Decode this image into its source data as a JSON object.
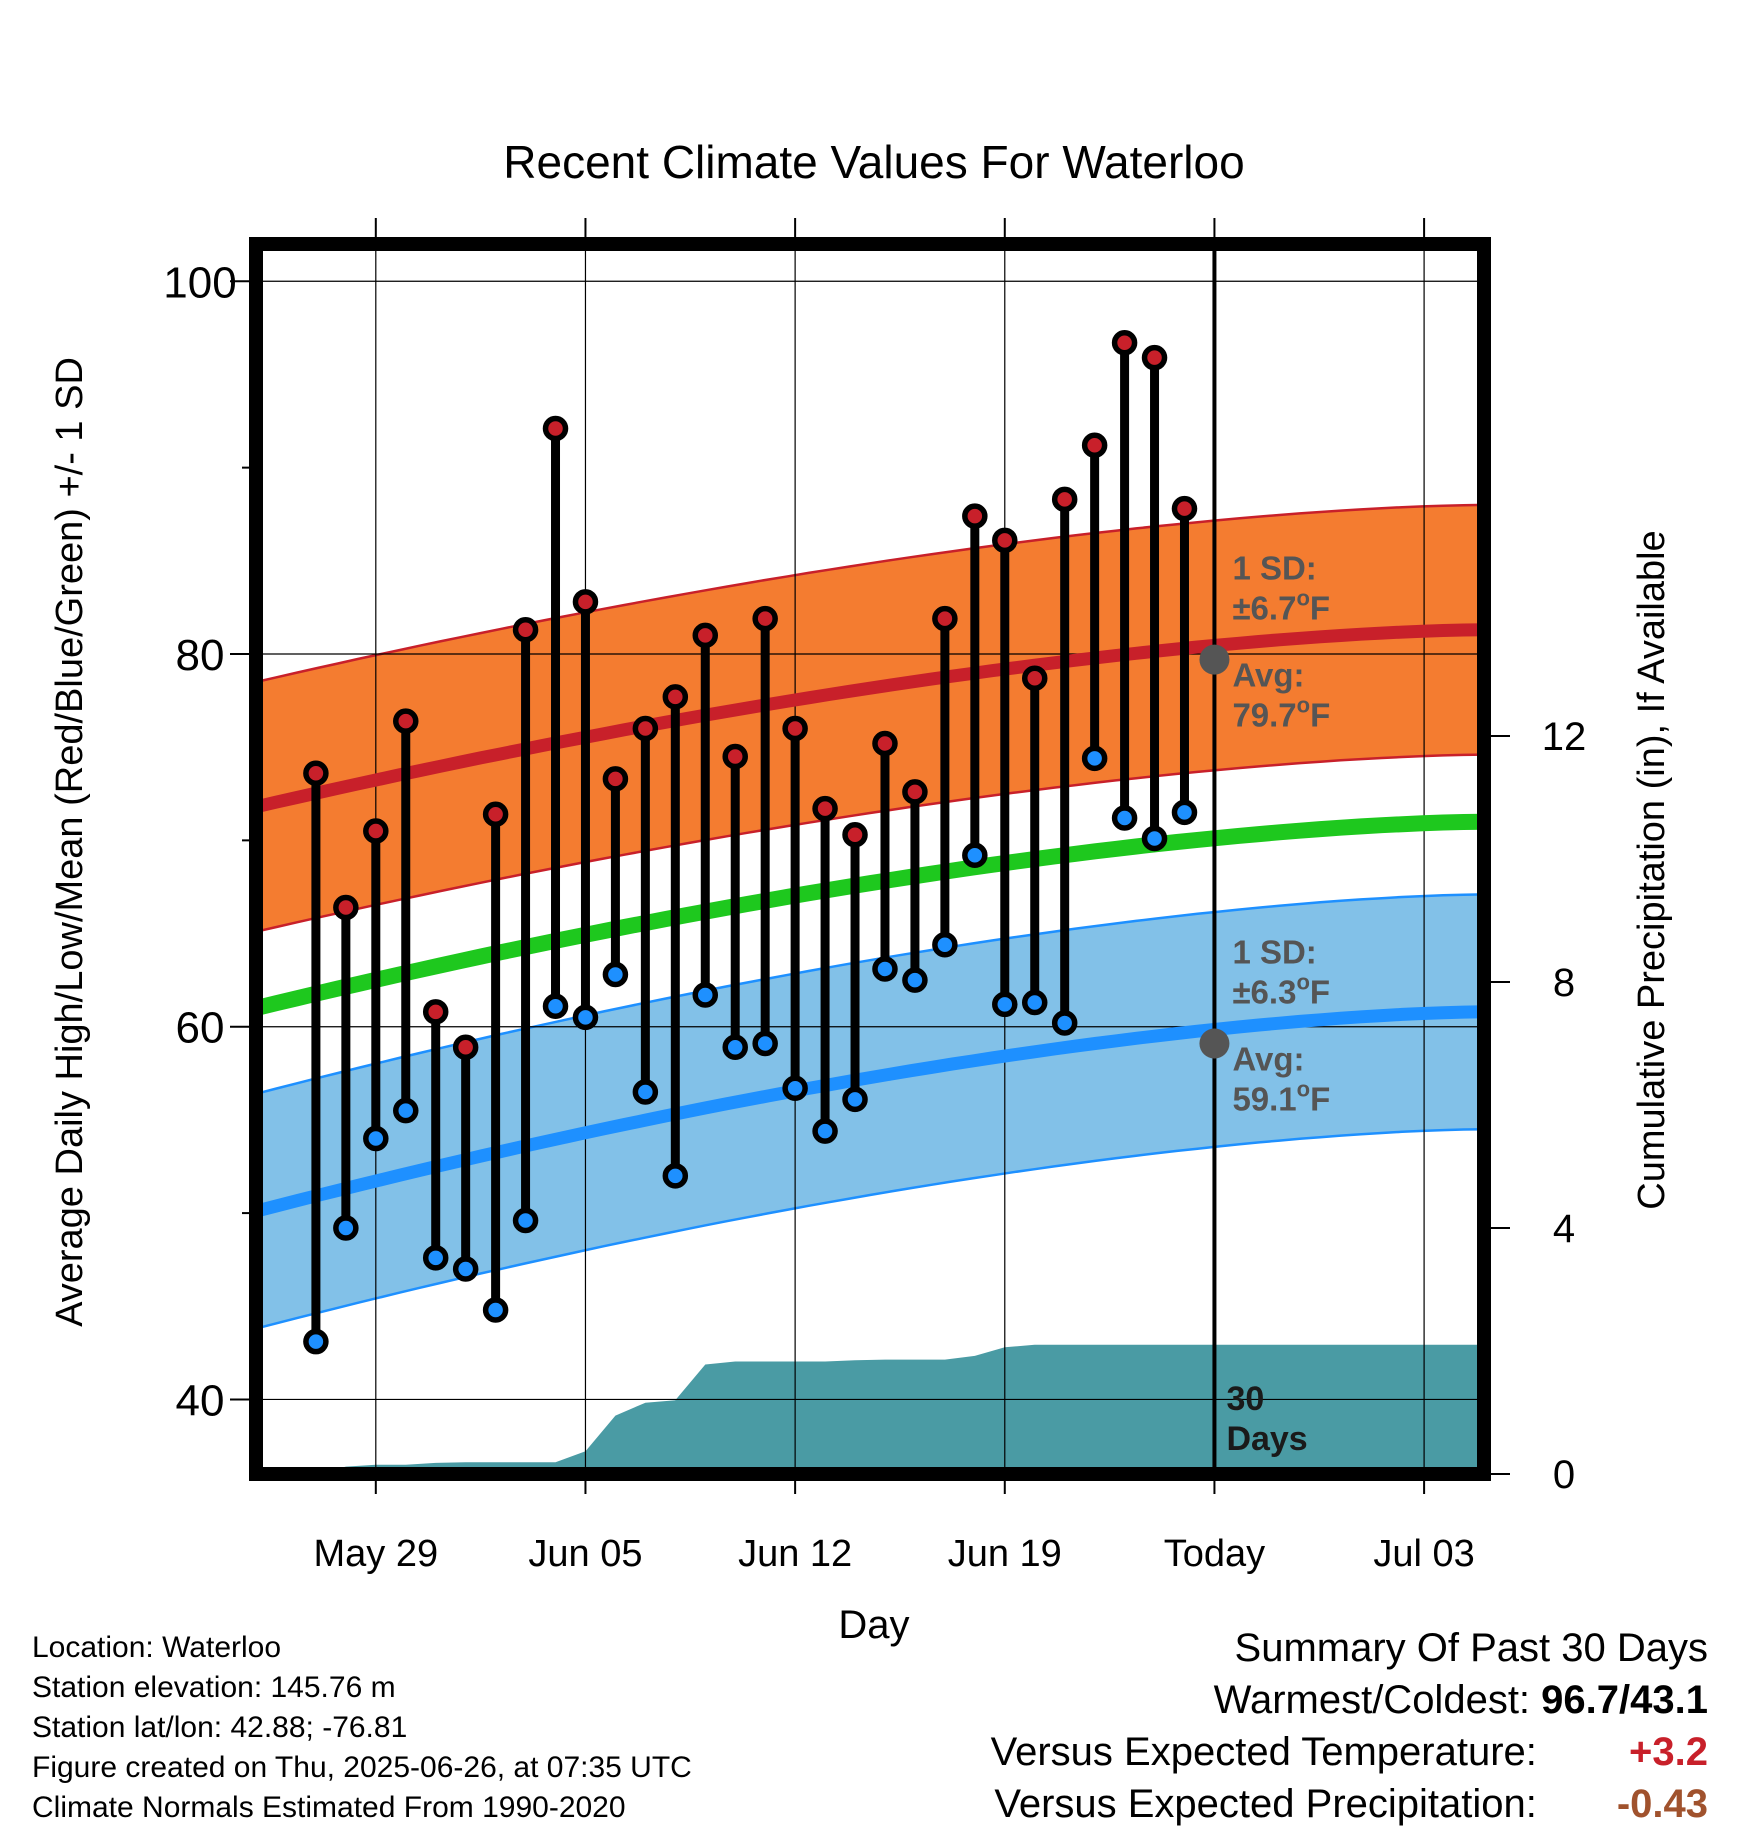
{
  "chart_data": {
    "type": "line",
    "title": "Recent Climate Values For Waterloo",
    "xlabel": "Day",
    "ylabel": "Average Daily High/Low/Mean (Red/Blue/Green) +/- 1 SD",
    "y2label": "Cumulative Precipitation (in), If Available",
    "ylim": [
      36,
      102
    ],
    "y_ticks": [
      40,
      60,
      80,
      100
    ],
    "y2lim": [
      0,
      20
    ],
    "y2_ticks": [
      0,
      4,
      8,
      12
    ],
    "xlim": [
      "2025-05-25",
      "2025-07-05"
    ],
    "x_ticks": [
      {
        "date": "2025-05-29",
        "label": "May 29"
      },
      {
        "date": "2025-06-05",
        "label": "Jun 05"
      },
      {
        "date": "2025-06-12",
        "label": "Jun 12"
      },
      {
        "date": "2025-06-19",
        "label": "Jun 19"
      },
      {
        "date": "2025-06-26",
        "label": "Today"
      },
      {
        "date": "2025-07-03",
        "label": "Jul 03"
      }
    ],
    "today": "2025-06-26",
    "today_label": "30 Days",
    "dates": [
      "2025-05-27",
      "2025-05-28",
      "2025-05-29",
      "2025-05-30",
      "2025-05-31",
      "2025-06-01",
      "2025-06-02",
      "2025-06-03",
      "2025-06-04",
      "2025-06-05",
      "2025-06-06",
      "2025-06-07",
      "2025-06-08",
      "2025-06-09",
      "2025-06-10",
      "2025-06-11",
      "2025-06-12",
      "2025-06-13",
      "2025-06-14",
      "2025-06-15",
      "2025-06-16",
      "2025-06-17",
      "2025-06-18",
      "2025-06-19",
      "2025-06-20",
      "2025-06-21",
      "2025-06-22",
      "2025-06-23",
      "2025-06-24",
      "2025-06-25"
    ],
    "series": [
      {
        "name": "High",
        "color": "#c8202a",
        "values": [
          73.6,
          66.4,
          70.5,
          76.4,
          60.8,
          58.9,
          71.4,
          81.3,
          92.1,
          82.8,
          73.3,
          76.0,
          77.7,
          81.0,
          74.5,
          81.9,
          76.0,
          71.7,
          70.3,
          75.2,
          72.6,
          81.9,
          87.4,
          86.1,
          78.7,
          88.3,
          91.2,
          96.7,
          95.9,
          87.8
        ]
      },
      {
        "name": "Low",
        "color": "#1e90ff",
        "values": [
          43.1,
          49.2,
          54.0,
          55.5,
          47.6,
          47.0,
          44.8,
          49.6,
          61.1,
          60.5,
          62.8,
          56.5,
          52.0,
          61.7,
          58.9,
          59.1,
          56.7,
          54.4,
          56.1,
          63.1,
          62.5,
          64.4,
          69.2,
          61.2,
          61.3,
          60.2,
          74.4,
          71.2,
          70.1,
          71.5
        ]
      }
    ],
    "normal_high": {
      "start": 71.8,
      "end": 81.3,
      "sd": 6.7,
      "today_avg": 79.7,
      "sd_label": "1 SD:",
      "sd_value": "±6.7°F",
      "avg_label": "Avg:",
      "avg_value": "79.7°F"
    },
    "normal_low": {
      "start": 50.1,
      "end": 60.8,
      "sd": 6.3,
      "today_avg": 59.1,
      "sd_label": "1 SD:",
      "sd_value": "±6.3°F",
      "avg_label": "Avg:",
      "avg_value": "59.1°F"
    },
    "normal_mean": {
      "start": 61.0,
      "end": 71.0
    },
    "precip_cumulative": [
      {
        "date": "2025-05-27",
        "value": 0.0
      },
      {
        "date": "2025-05-28",
        "value": 0.12
      },
      {
        "date": "2025-05-29",
        "value": 0.15
      },
      {
        "date": "2025-05-30",
        "value": 0.15
      },
      {
        "date": "2025-05-31",
        "value": 0.18
      },
      {
        "date": "2025-06-01",
        "value": 0.19
      },
      {
        "date": "2025-06-02",
        "value": 0.19
      },
      {
        "date": "2025-06-03",
        "value": 0.19
      },
      {
        "date": "2025-06-04",
        "value": 0.19
      },
      {
        "date": "2025-06-05",
        "value": 0.37
      },
      {
        "date": "2025-06-06",
        "value": 0.95
      },
      {
        "date": "2025-06-07",
        "value": 1.16
      },
      {
        "date": "2025-06-08",
        "value": 1.2
      },
      {
        "date": "2025-06-09",
        "value": 1.78
      },
      {
        "date": "2025-06-10",
        "value": 1.83
      },
      {
        "date": "2025-06-11",
        "value": 1.83
      },
      {
        "date": "2025-06-12",
        "value": 1.83
      },
      {
        "date": "2025-06-13",
        "value": 1.83
      },
      {
        "date": "2025-06-14",
        "value": 1.85
      },
      {
        "date": "2025-06-15",
        "value": 1.86
      },
      {
        "date": "2025-06-16",
        "value": 1.86
      },
      {
        "date": "2025-06-17",
        "value": 1.86
      },
      {
        "date": "2025-06-18",
        "value": 1.92
      },
      {
        "date": "2025-06-19",
        "value": 2.06
      },
      {
        "date": "2025-06-20",
        "value": 2.1
      },
      {
        "date": "2025-06-21",
        "value": 2.1
      },
      {
        "date": "2025-06-22",
        "value": 2.1
      },
      {
        "date": "2025-06-23",
        "value": 2.1
      },
      {
        "date": "2025-06-24",
        "value": 2.1
      },
      {
        "date": "2025-06-25",
        "value": 2.1
      },
      {
        "date": "2025-06-26",
        "value": 2.1
      },
      {
        "date": "2025-07-05",
        "value": 2.1
      }
    ],
    "colors": {
      "high_band": "#f47c30",
      "high_line": "#c8202a",
      "low_band": "#82c1e8",
      "low_line": "#1e90ff",
      "mean_line": "#1ec81e",
      "precip": "#4a9ba4",
      "today_label": "#555555"
    }
  },
  "footer": {
    "location": "Location: Waterloo",
    "elevation": "Station elevation: 145.76 m",
    "latlon": "Station lat/lon: 42.88; -76.81",
    "created": "Figure created on Thu, 2025-06-26, at 07:35 UTC",
    "normals": "Climate Normals Estimated From 1990-2020"
  },
  "summary": {
    "title": "Summary Of Past 30 Days",
    "warm_cold_label": "Warmest/Coldest:",
    "warm_cold_value": "96.7/43.1",
    "temp_label": "Versus Expected Temperature:",
    "temp_value": "+3.2",
    "temp_color": "#c8202a",
    "precip_label": "Versus Expected Precipitation:",
    "precip_value": "-0.43",
    "precip_color": "#a0522d"
  }
}
